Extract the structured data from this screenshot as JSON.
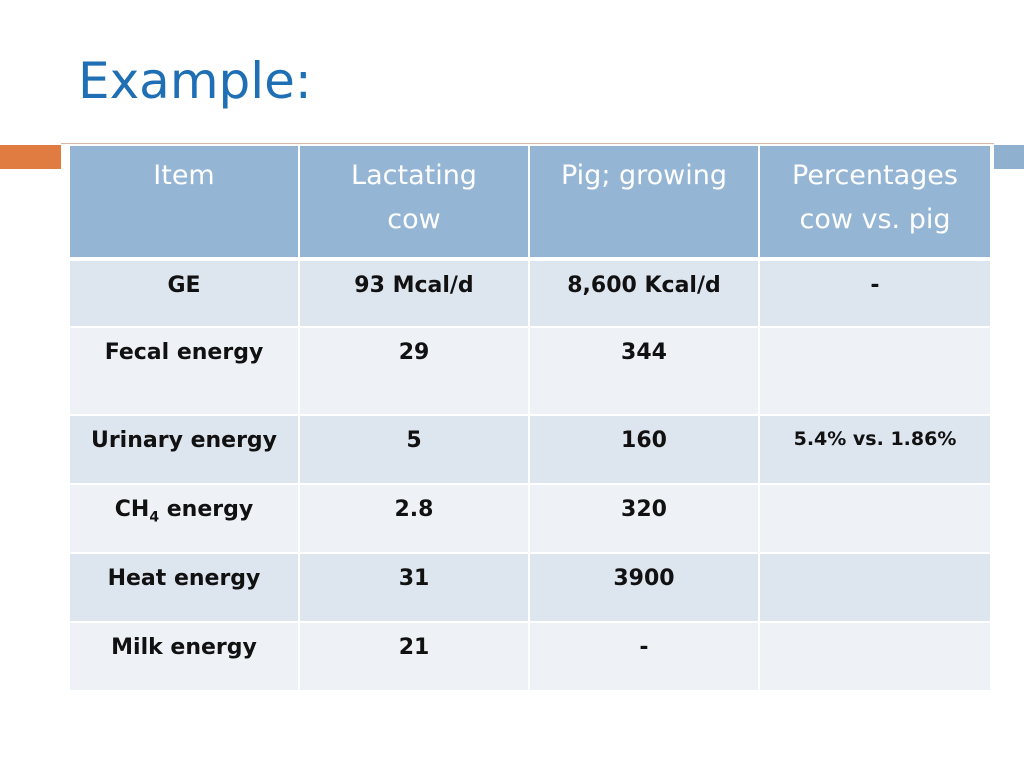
{
  "slide": {
    "title": "Example:"
  },
  "table": {
    "headers": {
      "item": "Item",
      "cow_line1": "Lactating",
      "cow_line2": "cow",
      "pig": "Pig; growing",
      "pct_line1": "Percentages",
      "pct_line2": "cow vs. pig"
    },
    "rows": [
      {
        "item": "GE",
        "cow": "93 Mcal/d",
        "pig": "8,600 Kcal/d",
        "pct": "-"
      },
      {
        "item": "Fecal energy",
        "cow": "29",
        "pig": "344",
        "pct": ""
      },
      {
        "item": "Urinary energy",
        "cow": "5",
        "pig": "160",
        "pct": "5.4% vs. 1.86%"
      },
      {
        "item_main": "CH",
        "item_sub": "4",
        "item_rest": " energy",
        "cow": "2.8",
        "pig": "320",
        "pct": ""
      },
      {
        "item": "Heat energy",
        "cow": "31",
        "pig": "3900",
        "pct": ""
      },
      {
        "item": "Milk energy",
        "cow": "21",
        "pig": "-",
        "pct": ""
      }
    ]
  },
  "colors": {
    "title": "#1f6fb5",
    "header_bg": "#94b5d4",
    "row_dark": "#dde5ee",
    "row_light": "#eef2f7",
    "accent_orange": "#e07c42",
    "accent_blue": "#8fb0cf"
  }
}
